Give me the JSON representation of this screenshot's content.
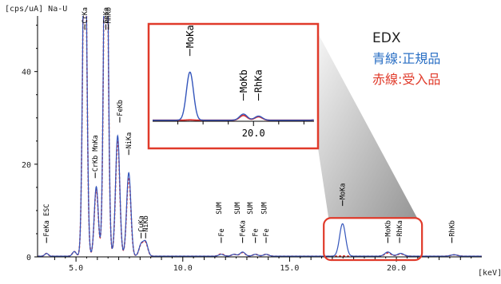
{
  "chart_data": {
    "type": "line",
    "title": "",
    "ylabel": "[cps/uA] Na-U",
    "xlabel": "[keV]",
    "xlim": [
      3.2,
      24.0
    ],
    "ylim": [
      0,
      52
    ],
    "x_ticks": [
      "5.0",
      "10.0",
      "15.0",
      "20.0"
    ],
    "x_tick_values": [
      5,
      10,
      15,
      20
    ],
    "y_ticks": [
      "0",
      "20",
      "40"
    ],
    "y_tick_values": [
      0,
      20,
      40
    ],
    "grid": false,
    "legend": {
      "title": "EDX",
      "entries": [
        "青線:正規品",
        "赤線:受入品"
      ],
      "position": "top-right"
    },
    "series": [
      {
        "name": "青線:正規品",
        "color": "#3355bb",
        "peaks": [
          {
            "x": 3.62,
            "h": 0.6
          },
          {
            "x": 4.92,
            "h": 1.0
          },
          {
            "x": 5.41,
            "h": 80
          },
          {
            "x": 5.95,
            "h": 15
          },
          {
            "x": 6.4,
            "h": 95
          },
          {
            "x": 6.95,
            "h": 26
          },
          {
            "x": 7.47,
            "h": 18
          },
          {
            "x": 8.05,
            "h": 2.5
          },
          {
            "x": 8.26,
            "h": 3.0
          },
          {
            "x": 11.8,
            "h": 0.4
          },
          {
            "x": 12.4,
            "h": 0.4
          },
          {
            "x": 12.8,
            "h": 0.9
          },
          {
            "x": 13.4,
            "h": 0.4
          },
          {
            "x": 13.9,
            "h": 0.4
          },
          {
            "x": 17.48,
            "h": 7.0
          },
          {
            "x": 19.6,
            "h": 0.9
          },
          {
            "x": 20.2,
            "h": 0.6
          },
          {
            "x": 22.7,
            "h": 0.3
          }
        ]
      },
      {
        "name": "赤線:受入品",
        "color": "#dd3333",
        "peaks": [
          {
            "x": 3.62,
            "h": 0.6
          },
          {
            "x": 4.92,
            "h": 1.0
          },
          {
            "x": 5.41,
            "h": 78
          },
          {
            "x": 5.95,
            "h": 14.5
          },
          {
            "x": 6.4,
            "h": 92
          },
          {
            "x": 6.95,
            "h": 25
          },
          {
            "x": 7.47,
            "h": 17
          },
          {
            "x": 8.05,
            "h": 2.4
          },
          {
            "x": 8.26,
            "h": 2.8
          },
          {
            "x": 11.8,
            "h": 0.5
          },
          {
            "x": 12.4,
            "h": 0.4
          },
          {
            "x": 12.8,
            "h": 0.8
          },
          {
            "x": 13.4,
            "h": 0.4
          },
          {
            "x": 13.9,
            "h": 0.4
          },
          {
            "x": 17.48,
            "h": 0.05
          },
          {
            "x": 19.6,
            "h": 0.7
          },
          {
            "x": 20.2,
            "h": 0.5
          },
          {
            "x": 22.7,
            "h": 0.3
          }
        ]
      }
    ],
    "peak_labels": [
      {
        "text": "FeKa ESC",
        "x": 3.62,
        "y": 3
      },
      {
        "text": "CrKa",
        "x": 5.41,
        "y": 49
      },
      {
        "text": "FeKa",
        "x": 6.4,
        "y": 49
      },
      {
        "text": "MnKb",
        "x": 6.52,
        "y": 49
      },
      {
        "text": "CrKb MnKa",
        "x": 5.9,
        "y": 17
      },
      {
        "text": "FeKb",
        "x": 7.05,
        "y": 29
      },
      {
        "text": "NiKa",
        "x": 7.47,
        "y": 22
      },
      {
        "text": "CuKa",
        "x": 8.05,
        "y": 4
      },
      {
        "text": "NiKb",
        "x": 8.26,
        "y": 4
      },
      {
        "text": "SUM",
        "x": 11.7,
        "y": 9
      },
      {
        "text": "Fe",
        "x": 11.8,
        "y": 3
      },
      {
        "text": "SUM",
        "x": 12.55,
        "y": 9
      },
      {
        "text": "FeKa",
        "x": 12.8,
        "y": 3
      },
      {
        "text": "SUM",
        "x": 13.15,
        "y": 9
      },
      {
        "text": "Fe",
        "x": 13.4,
        "y": 3
      },
      {
        "text": "SUM",
        "x": 13.8,
        "y": 9
      },
      {
        "text": "Fe",
        "x": 13.9,
        "y": 3
      },
      {
        "text": "MoKa",
        "x": 17.48,
        "y": 11
      },
      {
        "text": "MoKb",
        "x": 19.6,
        "y": 3
      },
      {
        "text": "RhKa",
        "x": 20.15,
        "y": 3
      },
      {
        "text": "RhKb",
        "x": 22.6,
        "y": 3
      }
    ],
    "inset": {
      "xlim": [
        16.0,
        22.4
      ],
      "ylim": [
        0,
        13
      ],
      "x_ticks": [
        "20.0"
      ],
      "x_tick_values": [
        20
      ],
      "peak_labels": [
        {
          "text": "MoKa",
          "x": 17.48,
          "y": 9.5
        },
        {
          "text": "MoKb",
          "x": 19.6,
          "y": 3
        },
        {
          "text": "RhKa",
          "x": 20.2,
          "y": 3
        }
      ]
    },
    "highlight_range": {
      "x": [
        16.6,
        21.2
      ],
      "y": [
        0,
        8.4
      ]
    }
  }
}
